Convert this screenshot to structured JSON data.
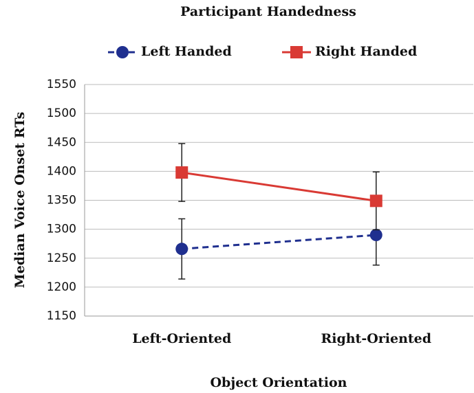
{
  "chart_data": {
    "type": "line",
    "title": "Participant Handedness",
    "xlabel": "Object Orientation",
    "ylabel": "Median Voice Onset RTs",
    "categories": [
      "Left-Oriented",
      "Right-Oriented"
    ],
    "series": [
      {
        "name": "Left Handed",
        "color": "#1f2f8f",
        "dashed": true,
        "marker": "circle",
        "values": [
          1266,
          1290
        ],
        "errors": [
          52,
          52
        ]
      },
      {
        "name": "Right Handed",
        "color": "#d93a34",
        "dashed": false,
        "marker": "square",
        "values": [
          1398,
          1349
        ],
        "errors": [
          50,
          50
        ]
      }
    ],
    "ylim": [
      1150,
      1550
    ],
    "yticks": [
      1150,
      1200,
      1250,
      1300,
      1350,
      1400,
      1450,
      1500,
      1550
    ],
    "grid": true,
    "legend": "top"
  }
}
